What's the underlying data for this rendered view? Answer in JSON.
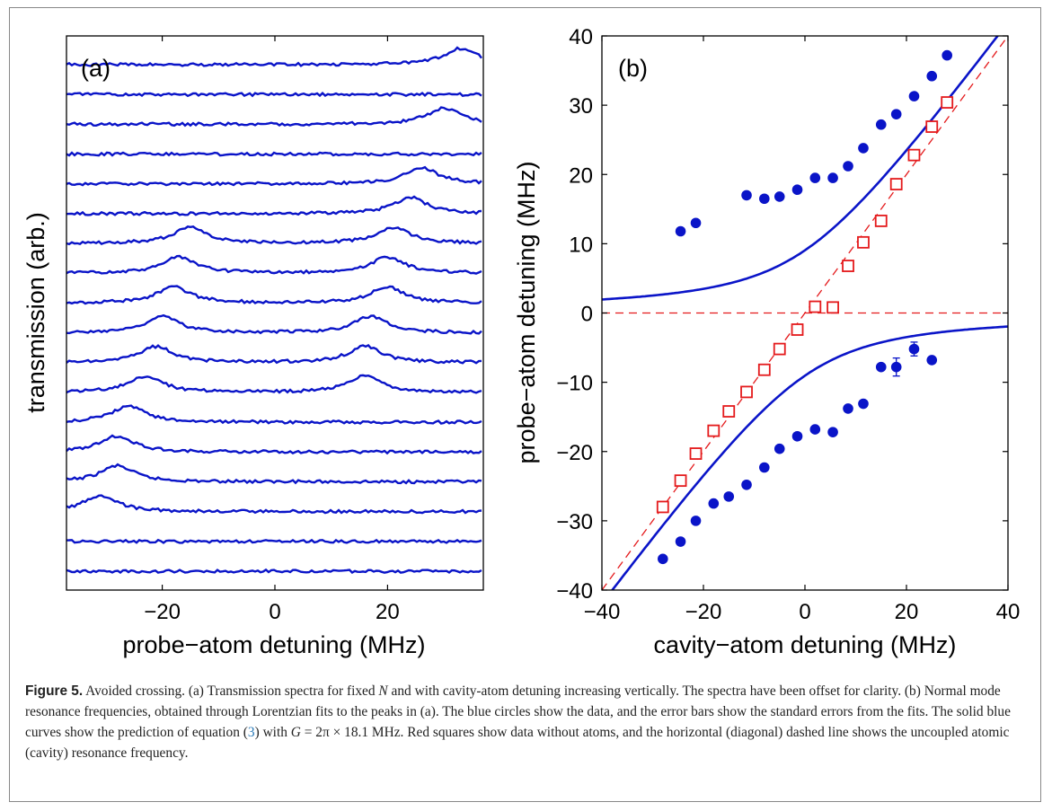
{
  "panel_a": {
    "label": "(a)",
    "ylabel": "transmission (arb.)",
    "xlabel": "probe−atom detuning (MHz)",
    "xticks": [
      "−20",
      "0",
      "20"
    ]
  },
  "panel_b": {
    "label": "(b)",
    "ylabel": "probe−atom detuning (MHz)",
    "xlabel": "cavity−atom detuning (MHz)",
    "xticks": [
      "−40",
      "−20",
      "0",
      "20",
      "40"
    ],
    "yticks": [
      "−40",
      "−30",
      "−20",
      "−10",
      "0",
      "10",
      "20",
      "30",
      "40"
    ]
  },
  "caption": {
    "fig_label": "Figure 5.",
    "t1": " Avoided crossing. (a) Transmission spectra for fixed ",
    "N": "N",
    "t2": " and with cavity-atom detuning increasing vertically. The spectra have been offset for clarity. (b) Normal mode resonance frequencies, obtained through Lorentzian fits to the peaks in (a). The blue circles show the data, and the error bars show the standard errors from the fits. The solid blue curves show the prediction of equation (",
    "eqref": "3",
    "t3": ") with ",
    "G": "G",
    "t4": " = 2π × 18.1 MHz. Red squares show data without atoms, and the horizontal (diagonal) dashed line shows the uncoupled atomic (cavity) resonance frequency."
  },
  "chart_data": [
    {
      "type": "line",
      "panel": "(a)",
      "xlabel": "probe−atom detuning (MHz)",
      "ylabel": "transmission (arb.)",
      "xlim": [
        -37,
        37
      ],
      "offset": 1,
      "note_peaks_from": "spectra listed bottom to top; peaks in MHz",
      "series": [
        {
          "peaks": []
        },
        {
          "peaks": []
        },
        {
          "peaks": [
            -31
          ]
        },
        {
          "peaks": [
            -28
          ]
        },
        {
          "peaks": [
            -28
          ]
        },
        {
          "peaks": [
            -26
          ]
        },
        {
          "peaks": [
            -23,
            16
          ]
        },
        {
          "peaks": [
            -21,
            16
          ]
        },
        {
          "peaks": [
            -20,
            17
          ]
        },
        {
          "peaks": [
            -18,
            20
          ]
        },
        {
          "peaks": [
            -17,
            20
          ]
        },
        {
          "peaks": [
            -15,
            21
          ]
        },
        {
          "peaks": [
            24
          ]
        },
        {
          "peaks": [
            26
          ]
        },
        {
          "peaks": []
        },
        {
          "peaks": [
            30
          ]
        },
        {
          "peaks": []
        },
        {
          "peaks": [
            33
          ]
        }
      ],
      "color": "#0a14c8"
    },
    {
      "type": "scatter",
      "panel": "(b)",
      "xlabel": "cavity−atom detuning (MHz)",
      "ylabel": "probe−atom detuning (MHz)",
      "xlim": [
        -40,
        40
      ],
      "ylim": [
        -40,
        40
      ],
      "G": 18.1,
      "series": [
        {
          "kind": "circles",
          "color": "#0a14c8",
          "x": [
            -24.5,
            -21.5,
            -11.5,
            -8,
            -5,
            -1.5,
            2,
            5.5,
            8.5,
            11.5,
            15,
            18,
            21.5,
            25,
            28
          ],
          "y": [
            11.8,
            13,
            17,
            16.5,
            16.8,
            17.8,
            19.5,
            19.5,
            21.2,
            23.8,
            27.2,
            28.7,
            31.3,
            34.2,
            37.2
          ]
        },
        {
          "kind": "circles",
          "color": "#0a14c8",
          "x": [
            -28,
            -24.5,
            -21.5,
            -18,
            -15,
            -11.5,
            -8,
            -5,
            -1.5,
            2,
            5.5,
            8.5,
            11.5,
            15,
            18,
            21.5,
            25
          ],
          "y": [
            -35.5,
            -33,
            -30,
            -27.5,
            -26.5,
            -24.8,
            -22.3,
            -19.6,
            -17.8,
            -16.8,
            -17.2,
            -13.8,
            -13.1,
            -7.8,
            -7.8,
            -5.2,
            -6.8
          ],
          "err": [
            0,
            0,
            0,
            0,
            0,
            0,
            0,
            0,
            0,
            0,
            0,
            0,
            0,
            0,
            1.3,
            1.0,
            0
          ]
        },
        {
          "kind": "squares",
          "color": "#e41a1c",
          "x": [
            -28,
            -24.5,
            -21.5,
            -18,
            -15,
            -11.5,
            -8,
            -5,
            -1.5,
            2,
            5.5,
            8.5,
            11.5,
            15,
            18,
            21.5,
            25,
            28
          ],
          "y": [
            -28,
            -24.2,
            -20.3,
            -17,
            -14.2,
            -11.4,
            -8.2,
            -5.2,
            -2.4,
            0.9,
            0.8,
            6.8,
            10.2,
            13.3,
            18.6,
            22.8,
            26.9,
            30.4
          ]
        }
      ]
    }
  ]
}
